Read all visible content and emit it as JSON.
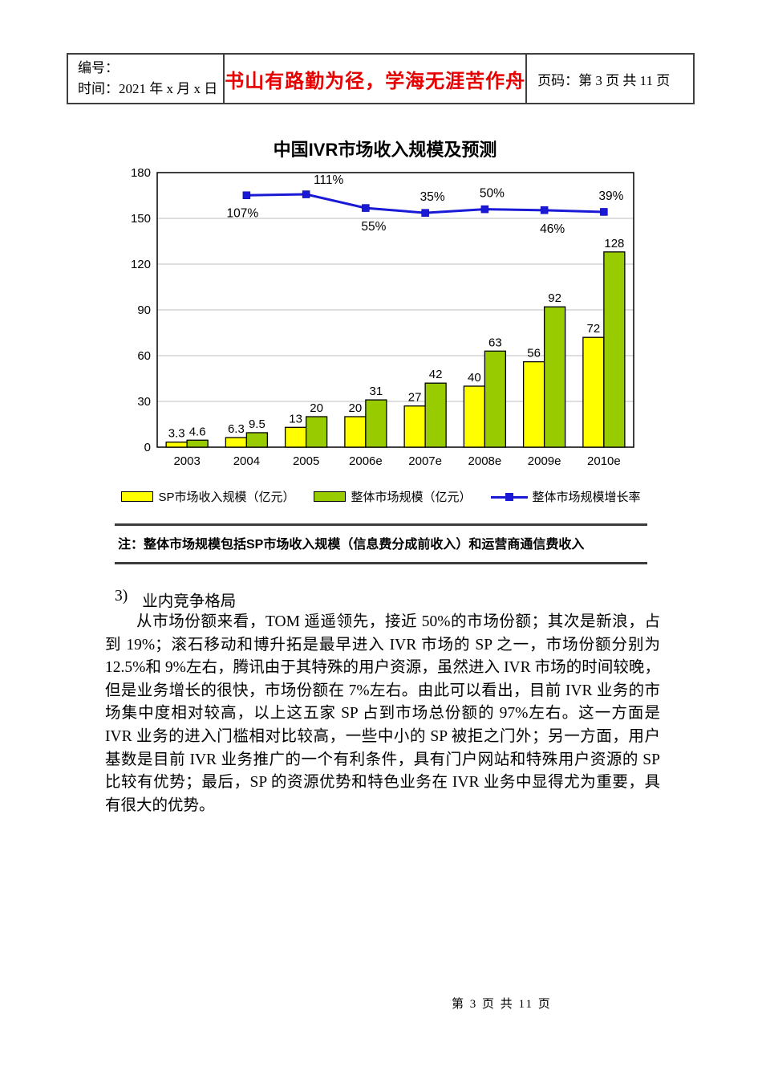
{
  "header": {
    "number_label": "编号：",
    "date_label": "时间：2021 年 x 月 x 日",
    "motto": "书山有路勤为径，学海无涯苦作舟",
    "motto_color": "#e60000",
    "page_label": "页码：第 3 页  共 11 页"
  },
  "chart_data": {
    "type": "bar",
    "title": "中国IVR市场收入规模及预测",
    "categories": [
      "2003",
      "2004",
      "2005",
      "2006e",
      "2007e",
      "2008e",
      "2009e",
      "2010e"
    ],
    "series": [
      {
        "name": "SP市场收入规模（亿元）",
        "type": "bar",
        "color": "#ffff00",
        "values": [
          3.3,
          6.3,
          13,
          20,
          27,
          40,
          56,
          72
        ]
      },
      {
        "name": "整体市场规模（亿元）",
        "type": "bar",
        "color": "#99cc00",
        "values": [
          4.6,
          9.5,
          20,
          31,
          42,
          63,
          92,
          128
        ]
      },
      {
        "name": "整体市场规模增长率",
        "type": "line",
        "color": "#1a1ad6",
        "values": [
          null,
          107,
          111,
          55,
          35,
          50,
          46,
          39
        ],
        "labels": [
          "",
          "107%",
          "111%",
          "55%",
          "35%",
          "50%",
          "46%",
          "39%"
        ],
        "label_positions": [
          null,
          "below-left",
          "above-right",
          "below",
          "above",
          "above",
          "below",
          "above"
        ]
      }
    ],
    "ylim": [
      0,
      180
    ],
    "yticks": [
      0,
      30,
      60,
      90,
      120,
      150,
      180
    ],
    "grid": true,
    "legend_position": "bottom",
    "note": "注：整体市场规模包括SP市场收入规模（信息费分成前收入）和运营商通信费收入"
  },
  "section": {
    "heading_number": "3)",
    "heading_text": "业内竞争格局",
    "paragraph": "从市场份额来看，TOM 遥遥领先，接近 50%的市场份额；其次是新浪，占到 19%；滚石移动和博升拓是最早进入 IVR 市场的 SP 之一，市场份额分别为 12.5%和 9%左右，腾讯由于其特殊的用户资源，虽然进入 IVR 市场的时间较晚，但是业务增长的很快，市场份额在 7%左右。由此可以看出，目前 IVR 业务的市场集中度相对较高，以上这五家 SP 占到市场总份额的 97%左右。这一方面是 IVR 业务的进入门槛相对比较高，一些中小的 SP 被拒之门外；另一方面，用户基数是目前 IVR 业务推广的一个有利条件，具有门户网站和特殊用户资源的 SP 比较有优势；最后，SP 的资源优势和特色业务在 IVR 业务中显得尤为重要，具有很大的优势。"
  },
  "footer": {
    "page_text": "第 3 页 共 11 页"
  }
}
